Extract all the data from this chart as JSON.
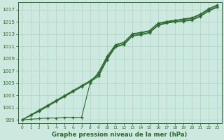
{
  "x": [
    0,
    1,
    2,
    3,
    4,
    5,
    6,
    7,
    8,
    9,
    10,
    11,
    12,
    13,
    14,
    15,
    16,
    17,
    18,
    19,
    20,
    21,
    22,
    23
  ],
  "line1": [
    999.0,
    999.8,
    1000.6,
    1001.4,
    1002.2,
    1003.0,
    1003.8,
    1004.6,
    1005.4,
    1006.5,
    1009.2,
    1011.2,
    1011.6,
    1013.0,
    1013.2,
    1013.5,
    1014.7,
    1015.0,
    1015.2,
    1015.4,
    1015.6,
    1016.2,
    1017.1,
    1017.7
  ],
  "line2": [
    999.0,
    999.8,
    1000.5,
    1001.3,
    1002.1,
    1002.9,
    1003.7,
    1004.5,
    1005.3,
    1006.3,
    1009.0,
    1011.0,
    1011.4,
    1012.8,
    1013.0,
    1013.3,
    1014.5,
    1014.9,
    1015.1,
    1015.2,
    1015.4,
    1016.0,
    1016.9,
    1017.5
  ],
  "line3": [
    999.0,
    999.7,
    1000.4,
    1001.2,
    1002.0,
    1002.8,
    1003.6,
    1004.4,
    1005.2,
    1006.1,
    1008.8,
    1010.9,
    1011.3,
    1012.7,
    1012.9,
    1013.2,
    1014.4,
    1014.8,
    1015.0,
    1015.1,
    1015.3,
    1015.9,
    1016.8,
    1017.4
  ],
  "line4": [
    999.0,
    999.1,
    999.2,
    999.3,
    999.3,
    999.4,
    999.4,
    999.4,
    1005.0,
    1006.8,
    1009.4,
    1011.3,
    1011.7,
    1013.1,
    1013.3,
    1013.6,
    1014.8,
    1015.1,
    1015.3,
    1015.5,
    1015.7,
    1016.3,
    1017.2,
    1017.8
  ],
  "line_color": "#2d6a2d",
  "bg_color": "#cce8df",
  "grid_color": "#a8d4c8",
  "ylabel_ticks": [
    999,
    1001,
    1003,
    1005,
    1007,
    1009,
    1011,
    1013,
    1015,
    1017
  ],
  "xlabel_label": "Graphe pression niveau de la mer (hPa)",
  "ylim": [
    998.5,
    1018.2
  ],
  "xlim": [
    -0.5,
    23.5
  ]
}
